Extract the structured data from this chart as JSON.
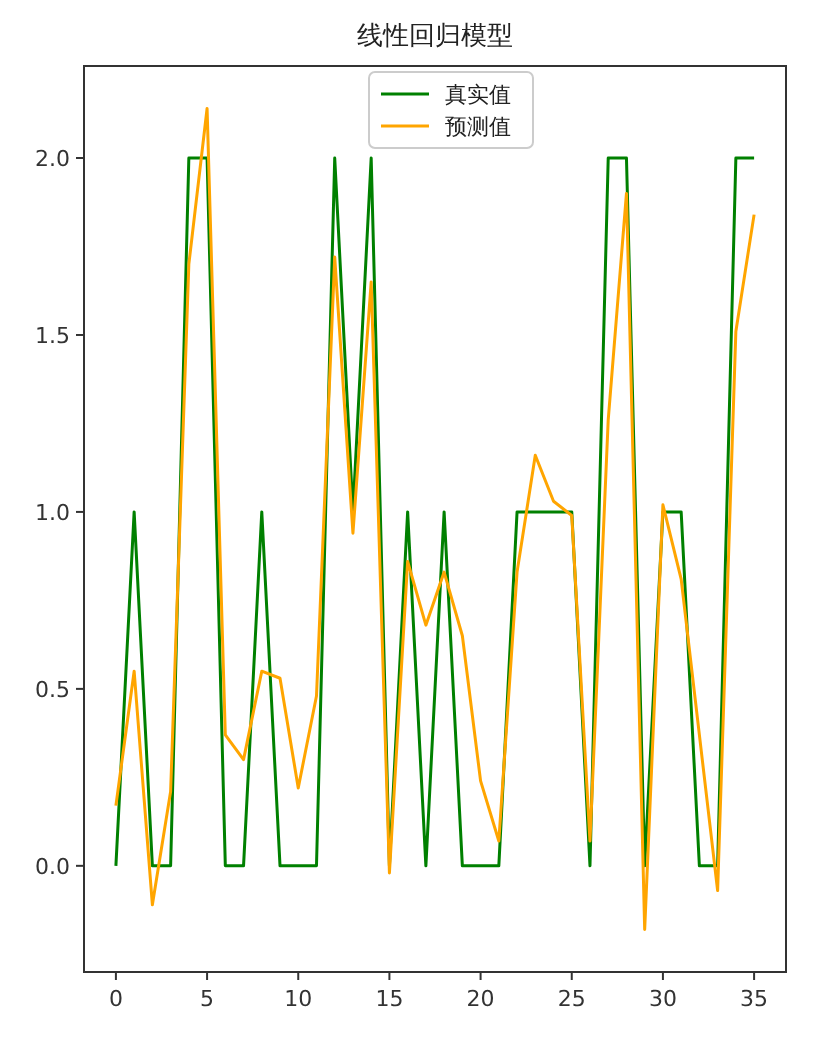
{
  "chart_data": {
    "type": "line",
    "title": "线性回归模型",
    "x": [
      0,
      1,
      2,
      3,
      4,
      5,
      6,
      7,
      8,
      9,
      10,
      11,
      12,
      13,
      14,
      15,
      16,
      17,
      18,
      19,
      20,
      21,
      22,
      23,
      24,
      25,
      26,
      27,
      28,
      29,
      30,
      31,
      32,
      33,
      34,
      35
    ],
    "series": [
      {
        "name": "真实值",
        "color": "#008000",
        "values": [
          0,
          1,
          0,
          0,
          2,
          2,
          0,
          0,
          1,
          0,
          0,
          0,
          2,
          1,
          2,
          0,
          1,
          0,
          1,
          0,
          0,
          0,
          1,
          1,
          1,
          1,
          0,
          2,
          2,
          0,
          1,
          1,
          0,
          0,
          2,
          2
        ]
      },
      {
        "name": "预测值",
        "color": "#ffa500",
        "values": [
          0.17,
          0.55,
          -0.11,
          0.21,
          1.7,
          2.14,
          0.37,
          0.3,
          0.55,
          0.53,
          0.22,
          0.48,
          1.72,
          0.94,
          1.65,
          -0.02,
          0.86,
          0.68,
          0.83,
          0.65,
          0.24,
          0.07,
          0.83,
          1.16,
          1.03,
          0.99,
          0.07,
          1.26,
          1.9,
          -0.18,
          1.02,
          0.81,
          0.37,
          -0.07,
          1.51,
          1.84
        ]
      }
    ],
    "xlim": [
      -1.75,
      36.75
    ],
    "ylim": [
      -0.3,
      2.26
    ],
    "xticks": [
      0,
      5,
      10,
      15,
      20,
      25,
      30,
      35
    ],
    "yticks": [
      {
        "value": 0,
        "label": "0.0"
      },
      {
        "value": 0.5,
        "label": "0.5"
      },
      {
        "value": 1,
        "label": "1.0"
      },
      {
        "value": 1.5,
        "label": "1.5"
      },
      {
        "value": 2,
        "label": "2.0"
      }
    ],
    "legend": "top",
    "grid": false,
    "marker": "none",
    "line_style": "solid"
  }
}
